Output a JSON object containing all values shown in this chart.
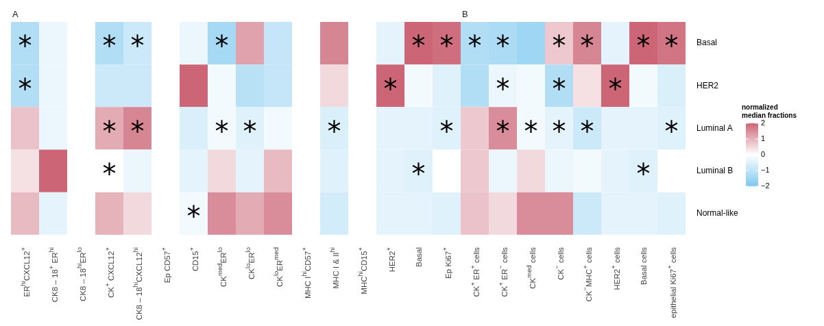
{
  "chart_data": {
    "type": "heatmap",
    "annotations": [
      "A",
      "B"
    ],
    "clabel": "normalized median fractions",
    "categories": [
      "ER$^{hi}$CXCL12$^{+}$",
      "CK8 – 18$^{+}$ ER$^{hi}$",
      "CK8 – 18$^{hi}$ER$^{lo}$",
      "CK$^{+}$ CXCL12$^{+}$",
      "CK8 – 18$^{hi}$CXCL12$^{hi}$",
      "Ep CD57$^{+}$",
      "CD15$^{+}$",
      "CK$^{med}$ER$^{lo}$",
      "CK$^{lo}$ER$^{lo}$",
      "CK$^{lo}$ER$^{med}$",
      "MHC I$^{hi}$CD57$^{+}$",
      "MHC I & II$^{hi}$",
      "MHC$^{hi}$CD15$^{+}$",
      "HER2$^{+}$",
      "Basal",
      "Ep Ki67$^{+}$",
      "CK$^{+}$ ER$^{+}$ cells",
      "CK$^{+}$ ER$^{−}$ cells",
      "CK$^{med}$ cells",
      "CK$^{−}$ cells",
      "CK$^{−}$MHC$^{+}$ cells",
      "HER2$^{+}$ cells",
      "Basal cells",
      "epithelial Ki67$^{+}$ cells"
    ],
    "y_categories": [
      "Basal",
      "HER2",
      "Luminal A",
      "Luminal B",
      "Normal-like"
    ],
    "cells": [
      [
        -1.2,
        -0.3,
        null,
        -1.2,
        -0.8,
        null,
        -0.3,
        -1.4,
        1.2,
        -0.9,
        null,
        1.6,
        null,
        -0.4,
        2.0,
        1.9,
        -1.2,
        -1.3,
        -1.5,
        0.7,
        1.6,
        -0.4,
        2.0,
        1.8
      ],
      [
        -1.2,
        -0.3,
        null,
        -0.8,
        -0.8,
        null,
        2.0,
        -0.2,
        -1.1,
        -0.9,
        null,
        0.5,
        null,
        2.0,
        -0.2,
        -0.5,
        -1.2,
        -0.3,
        -0.2,
        -1.2,
        0.4,
        2.0,
        -0.2,
        -0.6
      ],
      [
        0.8,
        -0.3,
        null,
        1.1,
        1.6,
        null,
        -0.6,
        -0.2,
        -0.5,
        -0.2,
        null,
        -0.6,
        null,
        -0.4,
        -0.4,
        -0.5,
        0.7,
        1.5,
        -0.2,
        -0.4,
        -0.8,
        -0.4,
        -0.4,
        -0.5
      ],
      [
        0.4,
        2.0,
        null,
        0.0,
        -0.3,
        null,
        -0.4,
        0.5,
        -0.4,
        0.9,
        null,
        -0.5,
        null,
        -0.4,
        -0.5,
        0.0,
        0.7,
        -0.3,
        0.5,
        -0.3,
        -0.2,
        -0.4,
        -0.5,
        0.0
      ],
      [
        0.9,
        -0.4,
        null,
        1.0,
        0.5,
        null,
        -0.2,
        1.5,
        1.1,
        1.5,
        null,
        -0.7,
        null,
        -0.4,
        -0.4,
        -0.5,
        0.8,
        0.5,
        1.5,
        1.5,
        -0.8,
        -0.4,
        -0.4,
        -0.5
      ]
    ],
    "cell_labels": [
      [
        "*",
        null,
        null,
        "*",
        "*",
        null,
        null,
        "*",
        null,
        null,
        null,
        null,
        null,
        null,
        "*",
        "*",
        "*",
        "*",
        null,
        "*",
        "*",
        null,
        "*",
        "*"
      ],
      [
        "*",
        null,
        null,
        null,
        null,
        null,
        null,
        null,
        null,
        null,
        null,
        null,
        null,
        "*",
        null,
        null,
        null,
        "*",
        null,
        "*",
        null,
        "*",
        null,
        null
      ],
      [
        null,
        null,
        null,
        "*",
        "*",
        null,
        null,
        "*",
        "*",
        null,
        null,
        "*",
        null,
        null,
        null,
        "*",
        null,
        "*",
        "*",
        "*",
        "*",
        null,
        null,
        "*"
      ],
      [
        null,
        null,
        null,
        "*",
        null,
        null,
        null,
        null,
        null,
        null,
        null,
        null,
        null,
        null,
        "*",
        null,
        null,
        null,
        null,
        null,
        null,
        null,
        "*",
        null
      ],
      [
        null,
        null,
        null,
        null,
        null,
        null,
        "*",
        null,
        null,
        null,
        null,
        null,
        null,
        null,
        null,
        null,
        null,
        null,
        null,
        null,
        null,
        null,
        null,
        null
      ]
    ],
    "clim": [
      -2,
      2
    ],
    "cticks": [
      {
        "value": -2,
        "label": "−2"
      },
      {
        "value": -1,
        "label": "−1"
      },
      0,
      1,
      2
    ]
  }
}
